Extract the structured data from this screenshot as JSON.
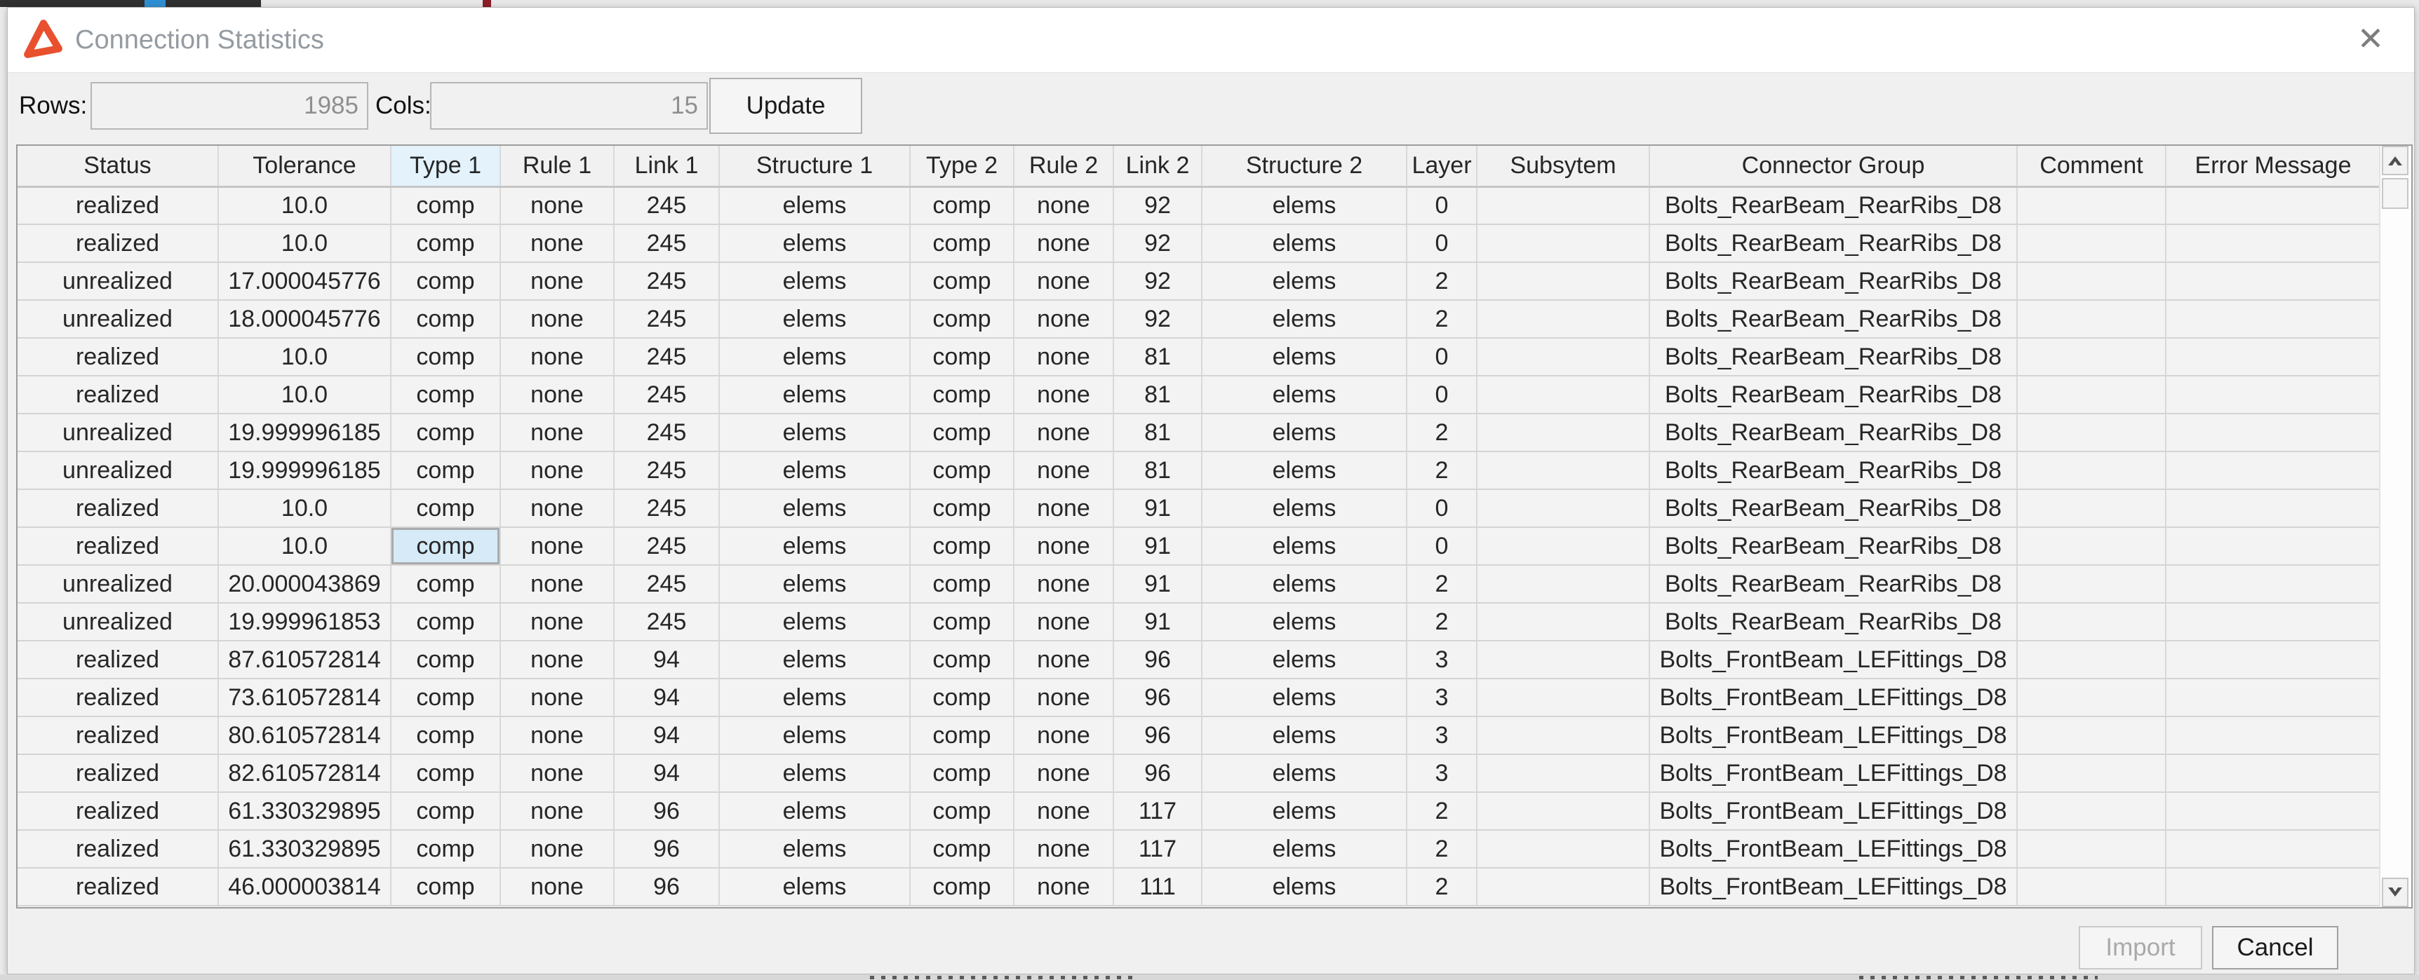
{
  "window": {
    "title": "Connection Statistics",
    "close_glyph": "✕"
  },
  "toolbar": {
    "rows_label": "Rows:",
    "rows_value": "1985",
    "cols_label": "Cols:",
    "cols_value": "15",
    "update_label": "Update"
  },
  "table": {
    "columns": [
      "Status",
      "Tolerance",
      "Type 1",
      "Rule 1",
      "Link 1",
      "Structure 1",
      "Type 2",
      "Rule 2",
      "Link 2",
      "Structure 2",
      "Layer",
      "Subsytem",
      "Connector Group",
      "Comment",
      "Error Message"
    ],
    "highlighted_col_index": 2,
    "selected_cell": {
      "row_index": 9,
      "col_index": 2
    },
    "rows": [
      [
        "realized",
        "10.0",
        "comp",
        "none",
        "245",
        "elems",
        "comp",
        "none",
        "92",
        "elems",
        "0",
        "",
        "Bolts_RearBeam_RearRibs_D8",
        "",
        ""
      ],
      [
        "realized",
        "10.0",
        "comp",
        "none",
        "245",
        "elems",
        "comp",
        "none",
        "92",
        "elems",
        "0",
        "",
        "Bolts_RearBeam_RearRibs_D8",
        "",
        ""
      ],
      [
        "unrealized",
        "17.000045776",
        "comp",
        "none",
        "245",
        "elems",
        "comp",
        "none",
        "92",
        "elems",
        "2",
        "",
        "Bolts_RearBeam_RearRibs_D8",
        "",
        ""
      ],
      [
        "unrealized",
        "18.000045776",
        "comp",
        "none",
        "245",
        "elems",
        "comp",
        "none",
        "92",
        "elems",
        "2",
        "",
        "Bolts_RearBeam_RearRibs_D8",
        "",
        ""
      ],
      [
        "realized",
        "10.0",
        "comp",
        "none",
        "245",
        "elems",
        "comp",
        "none",
        "81",
        "elems",
        "0",
        "",
        "Bolts_RearBeam_RearRibs_D8",
        "",
        ""
      ],
      [
        "realized",
        "10.0",
        "comp",
        "none",
        "245",
        "elems",
        "comp",
        "none",
        "81",
        "elems",
        "0",
        "",
        "Bolts_RearBeam_RearRibs_D8",
        "",
        ""
      ],
      [
        "unrealized",
        "19.999996185",
        "comp",
        "none",
        "245",
        "elems",
        "comp",
        "none",
        "81",
        "elems",
        "2",
        "",
        "Bolts_RearBeam_RearRibs_D8",
        "",
        ""
      ],
      [
        "unrealized",
        "19.999996185",
        "comp",
        "none",
        "245",
        "elems",
        "comp",
        "none",
        "81",
        "elems",
        "2",
        "",
        "Bolts_RearBeam_RearRibs_D8",
        "",
        ""
      ],
      [
        "realized",
        "10.0",
        "comp",
        "none",
        "245",
        "elems",
        "comp",
        "none",
        "91",
        "elems",
        "0",
        "",
        "Bolts_RearBeam_RearRibs_D8",
        "",
        ""
      ],
      [
        "realized",
        "10.0",
        "comp",
        "none",
        "245",
        "elems",
        "comp",
        "none",
        "91",
        "elems",
        "0",
        "",
        "Bolts_RearBeam_RearRibs_D8",
        "",
        ""
      ],
      [
        "unrealized",
        "20.000043869",
        "comp",
        "none",
        "245",
        "elems",
        "comp",
        "none",
        "91",
        "elems",
        "2",
        "",
        "Bolts_RearBeam_RearRibs_D8",
        "",
        ""
      ],
      [
        "unrealized",
        "19.999961853",
        "comp",
        "none",
        "245",
        "elems",
        "comp",
        "none",
        "91",
        "elems",
        "2",
        "",
        "Bolts_RearBeam_RearRibs_D8",
        "",
        ""
      ],
      [
        "realized",
        "87.610572814",
        "comp",
        "none",
        "94",
        "elems",
        "comp",
        "none",
        "96",
        "elems",
        "3",
        "",
        "Bolts_FrontBeam_LEFittings_D8",
        "",
        ""
      ],
      [
        "realized",
        "73.610572814",
        "comp",
        "none",
        "94",
        "elems",
        "comp",
        "none",
        "96",
        "elems",
        "3",
        "",
        "Bolts_FrontBeam_LEFittings_D8",
        "",
        ""
      ],
      [
        "realized",
        "80.610572814",
        "comp",
        "none",
        "94",
        "elems",
        "comp",
        "none",
        "96",
        "elems",
        "3",
        "",
        "Bolts_FrontBeam_LEFittings_D8",
        "",
        ""
      ],
      [
        "realized",
        "82.610572814",
        "comp",
        "none",
        "94",
        "elems",
        "comp",
        "none",
        "96",
        "elems",
        "3",
        "",
        "Bolts_FrontBeam_LEFittings_D8",
        "",
        ""
      ],
      [
        "realized",
        "61.330329895",
        "comp",
        "none",
        "96",
        "elems",
        "comp",
        "none",
        "117",
        "elems",
        "2",
        "",
        "Bolts_FrontBeam_LEFittings_D8",
        "",
        ""
      ],
      [
        "realized",
        "61.330329895",
        "comp",
        "none",
        "96",
        "elems",
        "comp",
        "none",
        "117",
        "elems",
        "2",
        "",
        "Bolts_FrontBeam_LEFittings_D8",
        "",
        ""
      ],
      [
        "realized",
        "46.000003814",
        "comp",
        "none",
        "96",
        "elems",
        "comp",
        "none",
        "111",
        "elems",
        "2",
        "",
        "Bolts_FrontBeam_LEFittings_D8",
        "",
        ""
      ]
    ]
  },
  "footer": {
    "import_label": "Import",
    "cancel_label": "Cancel"
  },
  "colors": {
    "selection_blue": "#d6ebf7",
    "header_highlight_blue": "#e3f2fb",
    "icon_orange": "#e8502e",
    "title_text_gray": "#949ba1",
    "dialog_gray": "#f0f0f0"
  }
}
